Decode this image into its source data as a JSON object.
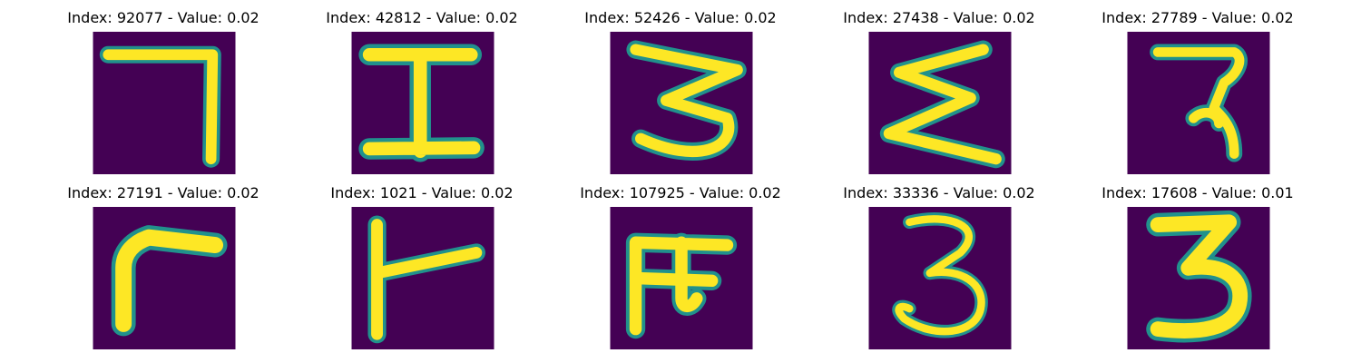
{
  "chart_data": {
    "type": "image-grid",
    "layout": {
      "rows": 2,
      "cols": 5
    },
    "colormap": {
      "background": "#440154",
      "mid": "#21918c",
      "foreground": "#fde725"
    },
    "panels": [
      {
        "title": "Index: 92077 - Value: 0.02",
        "index": 92077,
        "value": 0.02,
        "glyph": "7"
      },
      {
        "title": "Index: 42812 - Value: 0.02",
        "index": 42812,
        "value": 0.02,
        "glyph": "I"
      },
      {
        "title": "Index: 52426 - Value: 0.02",
        "index": 52426,
        "value": 0.02,
        "glyph": "3"
      },
      {
        "title": "Index: 27438 - Value: 0.02",
        "index": 27438,
        "value": 0.02,
        "glyph": "Σ"
      },
      {
        "title": "Index: 27789 - Value: 0.02",
        "index": 27789,
        "value": 0.02,
        "glyph": "ʔ"
      },
      {
        "title": "Index: 27191 - Value: 0.02",
        "index": 27191,
        "value": 0.02,
        "glyph": "r"
      },
      {
        "title": "Index: 1021 - Value: 0.02",
        "index": 1021,
        "value": 0.02,
        "glyph": "⊢"
      },
      {
        "title": "Index: 107925 - Value: 0.02",
        "index": 107925,
        "value": 0.02,
        "glyph": "π"
      },
      {
        "title": "Index: 33336 - Value: 0.02",
        "index": 33336,
        "value": 0.02,
        "glyph": "3"
      },
      {
        "title": "Index: 17608 - Value: 0.01",
        "index": 17608,
        "value": 0.01,
        "glyph": "3"
      }
    ]
  }
}
